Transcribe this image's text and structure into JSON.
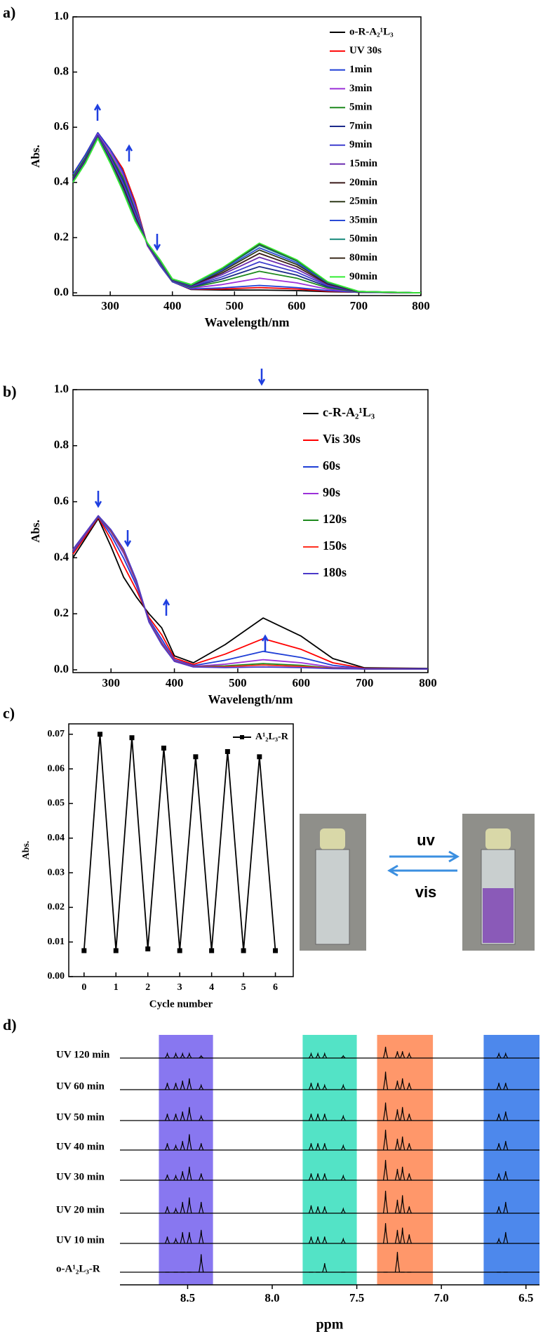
{
  "chart_data": [
    {
      "type": "line",
      "panel_label": "a)",
      "ylabel": "Abs.",
      "xlabel": "Wavelength/nm",
      "x": [
        240,
        260,
        280,
        300,
        320,
        340,
        360,
        380,
        400,
        430,
        480,
        540,
        600,
        650,
        700,
        800
      ],
      "xlim": [
        240,
        800
      ],
      "xticks": [
        300,
        400,
        500,
        600,
        700,
        800
      ],
      "ylim": [
        -0.01,
        1.0
      ],
      "yticks": [
        {
          "value": 0,
          "label": "0.0"
        },
        0.2,
        0.4,
        0.6,
        0.8,
        {
          "value": 1,
          "label": "1.0"
        }
      ],
      "series": [
        {
          "name": "o-R-A₂¹L₃",
          "color": "#000000",
          "values": [
            0.43,
            0.5,
            0.58,
            0.52,
            0.45,
            0.33,
            0.17,
            0.1,
            0.04,
            0.012,
            0.01,
            0.01,
            0.008,
            0.004,
            0.002,
            0
          ]
        },
        {
          "name": "UV 30s",
          "color": "#ff0000",
          "values": [
            0.43,
            0.5,
            0.58,
            0.52,
            0.45,
            0.33,
            0.17,
            0.1,
            0.04,
            0.013,
            0.014,
            0.019,
            0.014,
            0.006,
            0.002,
            0
          ]
        },
        {
          "name": "1min",
          "color": "#1f3fd6",
          "values": [
            0.43,
            0.5,
            0.58,
            0.52,
            0.44,
            0.32,
            0.17,
            0.1,
            0.04,
            0.014,
            0.018,
            0.027,
            0.019,
            0.008,
            0.002,
            0
          ]
        },
        {
          "name": "3min",
          "color": "#9b30d8",
          "values": [
            0.42,
            0.49,
            0.575,
            0.51,
            0.43,
            0.31,
            0.17,
            0.105,
            0.043,
            0.017,
            0.03,
            0.053,
            0.036,
            0.013,
            0.003,
            0
          ]
        },
        {
          "name": "5min",
          "color": "#1e8a1e",
          "values": [
            0.42,
            0.49,
            0.57,
            0.5,
            0.42,
            0.3,
            0.174,
            0.108,
            0.044,
            0.019,
            0.042,
            0.078,
            0.053,
            0.018,
            0.003,
            0
          ]
        },
        {
          "name": "7min",
          "color": "#1c2a8a",
          "values": [
            0.415,
            0.485,
            0.57,
            0.495,
            0.41,
            0.295,
            0.175,
            0.11,
            0.045,
            0.021,
            0.05,
            0.095,
            0.064,
            0.022,
            0.004,
            0
          ]
        },
        {
          "name": "9min",
          "color": "#3f3fcf",
          "values": [
            0.41,
            0.48,
            0.568,
            0.49,
            0.4,
            0.29,
            0.176,
            0.112,
            0.046,
            0.023,
            0.058,
            0.112,
            0.075,
            0.026,
            0.004,
            0
          ]
        },
        {
          "name": "15min",
          "color": "#6a2bb0",
          "values": [
            0.41,
            0.48,
            0.566,
            0.485,
            0.39,
            0.28,
            0.177,
            0.114,
            0.047,
            0.025,
            0.066,
            0.129,
            0.086,
            0.029,
            0.004,
            0
          ]
        },
        {
          "name": "20min",
          "color": "#3b1a1a",
          "values": [
            0.407,
            0.477,
            0.564,
            0.48,
            0.388,
            0.275,
            0.178,
            0.116,
            0.048,
            0.026,
            0.072,
            0.143,
            0.095,
            0.032,
            0.004,
            0
          ]
        },
        {
          "name": "25min",
          "color": "#2e3a1a",
          "values": [
            0.405,
            0.475,
            0.563,
            0.477,
            0.382,
            0.27,
            0.178,
            0.117,
            0.048,
            0.027,
            0.078,
            0.155,
            0.103,
            0.035,
            0.005,
            0
          ]
        },
        {
          "name": "35min",
          "color": "#2a4ad6",
          "values": [
            0.403,
            0.473,
            0.562,
            0.475,
            0.378,
            0.267,
            0.179,
            0.118,
            0.049,
            0.028,
            0.082,
            0.163,
            0.109,
            0.036,
            0.005,
            0
          ]
        },
        {
          "name": "50min",
          "color": "#15887a",
          "values": [
            0.401,
            0.471,
            0.561,
            0.472,
            0.374,
            0.263,
            0.18,
            0.119,
            0.05,
            0.029,
            0.086,
            0.172,
            0.115,
            0.038,
            0.005,
            0
          ]
        },
        {
          "name": "80min",
          "color": "#3a2a1a",
          "values": [
            0.4,
            0.47,
            0.56,
            0.471,
            0.372,
            0.261,
            0.18,
            0.12,
            0.05,
            0.03,
            0.088,
            0.177,
            0.118,
            0.039,
            0.005,
            0
          ]
        },
        {
          "name": "90min",
          "color": "#33ee33",
          "values": [
            0.4,
            0.47,
            0.56,
            0.47,
            0.37,
            0.26,
            0.18,
            0.12,
            0.05,
            0.03,
            0.09,
            0.18,
            0.12,
            0.04,
            0.005,
            0
          ]
        }
      ]
    },
    {
      "type": "line",
      "panel_label": "b)",
      "ylabel": "Abs.",
      "xlabel": "Wavelength/nm",
      "x": [
        240,
        260,
        280,
        300,
        320,
        340,
        360,
        380,
        400,
        430,
        480,
        540,
        600,
        650,
        700,
        800
      ],
      "xlim": [
        240,
        800
      ],
      "xticks": [
        300,
        400,
        500,
        600,
        700,
        800
      ],
      "ylim": [
        -0.01,
        1.0
      ],
      "yticks": [
        {
          "value": 0,
          "label": "0.0"
        },
        0.2,
        0.4,
        0.6,
        0.8,
        {
          "value": 1,
          "label": "1.0"
        }
      ],
      "series": [
        {
          "name": "c-R-A₂¹L₃",
          "color": "#000000",
          "values": [
            0.4,
            0.47,
            0.54,
            0.44,
            0.33,
            0.26,
            0.2,
            0.15,
            0.05,
            0.025,
            0.09,
            0.185,
            0.12,
            0.04,
            0.007,
            0.005
          ]
        },
        {
          "name": "Vis 30s",
          "color": "#ff0000",
          "values": [
            0.413,
            0.478,
            0.544,
            0.465,
            0.372,
            0.285,
            0.187,
            0.125,
            0.042,
            0.019,
            0.056,
            0.111,
            0.073,
            0.025,
            0.005,
            0.004
          ]
        },
        {
          "name": "60s",
          "color": "#1f3fd6",
          "values": [
            0.42,
            0.484,
            0.547,
            0.481,
            0.398,
            0.301,
            0.18,
            0.109,
            0.036,
            0.015,
            0.034,
            0.066,
            0.044,
            0.016,
            0.004,
            0.004
          ]
        },
        {
          "name": "90s",
          "color": "#9b30d8",
          "values": [
            0.426,
            0.487,
            0.549,
            0.491,
            0.415,
            0.311,
            0.175,
            0.099,
            0.033,
            0.012,
            0.02,
            0.036,
            0.025,
            0.009,
            0.004,
            0.003
          ]
        },
        {
          "name": "120s",
          "color": "#1e8a1e",
          "values": [
            0.428,
            0.489,
            0.549,
            0.496,
            0.423,
            0.316,
            0.172,
            0.094,
            0.031,
            0.011,
            0.014,
            0.022,
            0.016,
            0.006,
            0.003,
            0.003
          ]
        },
        {
          "name": "150s",
          "color": "#ff3020",
          "values": [
            0.429,
            0.489,
            0.55,
            0.498,
            0.426,
            0.318,
            0.171,
            0.092,
            0.031,
            0.011,
            0.011,
            0.017,
            0.012,
            0.005,
            0.003,
            0.003
          ]
        },
        {
          "name": "180s",
          "color": "#4b39c9",
          "values": [
            0.43,
            0.49,
            0.55,
            0.5,
            0.43,
            0.32,
            0.17,
            0.09,
            0.03,
            0.01,
            0.008,
            0.01,
            0.008,
            0.004,
            0.003,
            0.003
          ]
        }
      ]
    },
    {
      "type": "line",
      "panel_label": "c)",
      "ylabel": "Abs.",
      "xlabel": "Cycle number",
      "marker": "square",
      "x": [
        0,
        0.5,
        1,
        1.5,
        2,
        2.5,
        3,
        3.5,
        4,
        4.5,
        5,
        5.5,
        6
      ],
      "xlim": [
        -0.48,
        6.56
      ],
      "xticks": [
        0,
        1,
        2,
        3,
        4,
        5,
        6
      ],
      "ylim": [
        0,
        0.073
      ],
      "yticks": [
        {
          "value": 0,
          "label": "0.00"
        },
        {
          "value": 0.01,
          "label": "0.01"
        },
        {
          "value": 0.02,
          "label": "0.02"
        },
        {
          "value": 0.03,
          "label": "0.03"
        },
        {
          "value": 0.04,
          "label": "0.04"
        },
        {
          "value": 0.05,
          "label": "0.05"
        },
        {
          "value": 0.06,
          "label": "0.06"
        },
        {
          "value": 0.07,
          "label": "0.07"
        }
      ],
      "series": [
        {
          "name": "A¹₂L₃-R",
          "color": "#000000",
          "values": [
            0.0075,
            0.07,
            0.0075,
            0.069,
            0.008,
            0.066,
            0.0075,
            0.0635,
            0.0075,
            0.065,
            0.0075,
            0.0635,
            0.0075
          ]
        }
      ],
      "annotations": [
        "uv",
        "vis"
      ]
    },
    {
      "type": "spectrum",
      "panel_label": "d)",
      "xlabel": "ppm",
      "xlim": [
        8.9,
        6.42
      ],
      "xticks": [
        8.5,
        {
          "value": 8,
          "label": "8.0"
        },
        7.5,
        {
          "value": 7,
          "label": "7.0"
        },
        6.5
      ],
      "bands": [
        {
          "from": 8.67,
          "to": 8.35,
          "color": "#7b68ee"
        },
        {
          "from": 7.82,
          "to": 7.5,
          "color": "#40e0c0"
        },
        {
          "from": 7.38,
          "to": 7.05,
          "color": "#ff8c5a"
        },
        {
          "from": 6.75,
          "to": 6.42,
          "color": "#3a7bea"
        }
      ],
      "peak_ppm": [
        8.62,
        8.57,
        8.53,
        8.49,
        8.42,
        7.77,
        7.73,
        7.69,
        7.58,
        7.33,
        7.26,
        7.23,
        7.19,
        6.66,
        6.62
      ],
      "spectra": [
        {
          "label": "UV 120 min",
          "intensities": [
            0.2,
            0.2,
            0.2,
            0.2,
            0.1,
            0.2,
            0.2,
            0.2,
            0.1,
            0.5,
            0.3,
            0.3,
            0.2,
            0.2,
            0.2
          ]
        },
        {
          "label": "UV 60 min",
          "intensities": [
            0.3,
            0.3,
            0.4,
            0.5,
            0.2,
            0.3,
            0.3,
            0.2,
            0.2,
            0.8,
            0.4,
            0.5,
            0.3,
            0.3,
            0.3
          ]
        },
        {
          "label": "UV 50 min",
          "intensities": [
            0.3,
            0.3,
            0.4,
            0.6,
            0.2,
            0.3,
            0.3,
            0.3,
            0.2,
            0.8,
            0.5,
            0.6,
            0.3,
            0.3,
            0.4
          ]
        },
        {
          "label": "UV 40 min",
          "intensities": [
            0.3,
            0.2,
            0.4,
            0.7,
            0.3,
            0.3,
            0.3,
            0.3,
            0.2,
            0.9,
            0.5,
            0.6,
            0.3,
            0.3,
            0.4
          ]
        },
        {
          "label": "UV 30 min",
          "intensities": [
            0.25,
            0.2,
            0.4,
            0.6,
            0.3,
            0.3,
            0.3,
            0.3,
            0.2,
            0.9,
            0.5,
            0.6,
            0.3,
            0.3,
            0.4
          ]
        },
        {
          "label": "UV 20 min",
          "intensities": [
            0.3,
            0.2,
            0.5,
            0.7,
            0.5,
            0.35,
            0.3,
            0.3,
            0.2,
            1.0,
            0.6,
            0.8,
            0.3,
            0.3,
            0.5
          ]
        },
        {
          "label": "UV 10 min",
          "intensities": [
            0.3,
            0.2,
            0.5,
            0.5,
            0.6,
            0.3,
            0.3,
            0.3,
            0.2,
            0.9,
            0.6,
            0.7,
            0.4,
            0.2,
            0.5
          ]
        },
        {
          "label": "o-A¹₂L₃-R",
          "intensities": [
            0,
            0,
            0,
            0,
            0.8,
            0,
            0,
            0.4,
            0,
            0,
            0.9,
            0,
            0,
            0,
            0
          ]
        }
      ]
    }
  ]
}
